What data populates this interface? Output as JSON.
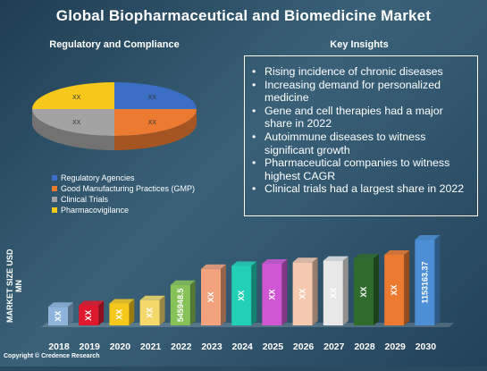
{
  "title": "Global Biopharmaceutical and Biomedicine Market",
  "left_heading": "Regulatory and Compliance",
  "right_heading": "Key Insights",
  "insights": [
    "Rising incidence of chronic diseases",
    "Increasing demand for personalized medicine",
    "Gene and cell therapies had a major share in 2022",
    "Autoimmune diseases to witness significant growth",
    "Pharmaceutical companies to witness highest CAGR",
    "Clinical trials had a largest share in 2022"
  ],
  "copyright": "Copyright © Credence Research",
  "chart_data": [
    {
      "type": "pie",
      "title": "Regulatory and Compliance",
      "categories": [
        "Regulatory Agencies",
        "Good Manufacturing Practices (GMP)",
        "Clinical Trials",
        "Pharmacovigilance"
      ],
      "values": [
        25,
        25,
        25,
        25
      ],
      "data_labels": [
        "XX",
        "XX",
        "XX",
        "XX"
      ],
      "colors": [
        "#3b6fc6",
        "#ec7a31",
        "#a3a3a3",
        "#f6c81c"
      ],
      "legend_position": "bottom"
    },
    {
      "type": "bar",
      "ylabel": "MARKET SIZE USD MN",
      "categories": [
        "2018",
        "2019",
        "2020",
        "2021",
        "2022",
        "2023",
        "2024",
        "2025",
        "2026",
        "2027",
        "2028",
        "2029",
        "2030"
      ],
      "values": [
        250000,
        270000,
        295000,
        340000,
        545948.5,
        760000,
        800000,
        830000,
        850000,
        870000,
        900000,
        950000,
        1153163.37
      ],
      "data_labels": [
        "XX",
        "XX",
        "XX",
        "XX",
        "545948.5",
        "XX",
        "XX",
        "XX",
        "XX",
        "XX",
        "XX",
        "XX",
        "1153163.37"
      ],
      "colors": [
        "#8fb4dc",
        "#e0182d",
        "#f6c81c",
        "#f4d96a",
        "#86c257",
        "#f2a27c",
        "#22d0b6",
        "#d057d3",
        "#f5c9b0",
        "#e8e8e8",
        "#2e6b2c",
        "#ec7a31",
        "#4c8fd6"
      ],
      "ylim": [
        0,
        1250000
      ],
      "grid": false,
      "legend": "none"
    }
  ]
}
